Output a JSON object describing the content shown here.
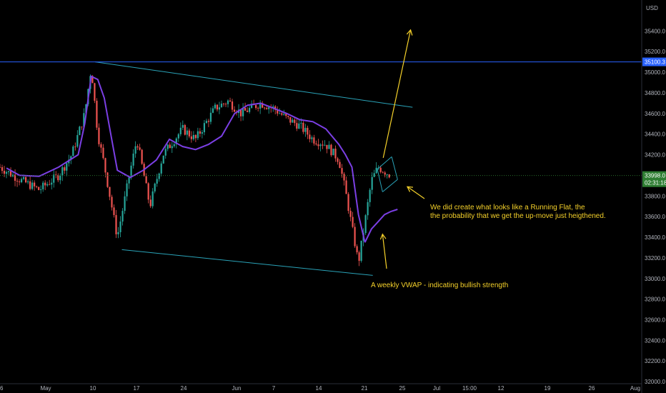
{
  "chart_data": {
    "type": "candlestick",
    "currency": "USD",
    "y_ticks": [
      "35400.0",
      "35200.0",
      "35000.0",
      "34800.0",
      "34600.0",
      "34400.0",
      "34200.0",
      "34000.0",
      "33800.0",
      "33600.0",
      "33400.0",
      "33200.0",
      "33000.0",
      "32800.0",
      "32600.0",
      "32400.0",
      "32200.0",
      "32000.0"
    ],
    "x_ticks": [
      "6",
      "May",
      "10",
      "17",
      "24",
      "Jun",
      "7",
      "14",
      "21",
      "25",
      "Jul",
      "15:00",
      "12",
      "19",
      "26",
      "Aug"
    ],
    "ylim": [
      31980,
      35700
    ],
    "xlim": [
      0,
      100
    ],
    "price_label": "33998.0",
    "countdown": "02:31:18",
    "level_label": "35100.3",
    "level_value": 35100.3,
    "current_price": 33998,
    "annotations": [
      "We did create what looks like a Running Flat, the",
      "the probability that we get the up-move just heigthened.",
      "A weekly VWAP - indicating bullish strength"
    ],
    "anchors": [
      [
        0,
        34080
      ],
      [
        3,
        33960
      ],
      [
        6,
        33860
      ],
      [
        9,
        34000
      ],
      [
        11,
        34200
      ],
      [
        13,
        34600
      ],
      [
        14,
        35050
      ],
      [
        15,
        34400
      ],
      [
        16,
        34100
      ],
      [
        18,
        33400
      ],
      [
        20,
        34050
      ],
      [
        21,
        34350
      ],
      [
        23,
        33700
      ],
      [
        25,
        34200
      ],
      [
        28,
        34450
      ],
      [
        30,
        34350
      ],
      [
        33,
        34650
      ],
      [
        35,
        34720
      ],
      [
        37,
        34600
      ],
      [
        40,
        34700
      ],
      [
        42,
        34650
      ],
      [
        44,
        34550
      ],
      [
        46,
        34480
      ],
      [
        48,
        34350
      ],
      [
        50,
        34300
      ],
      [
        52,
        34150
      ],
      [
        53,
        33850
      ],
      [
        54,
        33500
      ],
      [
        55,
        33150
      ],
      [
        56,
        33550
      ],
      [
        57,
        33950
      ],
      [
        58,
        34080
      ],
      [
        59,
        34040
      ],
      [
        60,
        33998
      ]
    ],
    "vwap_main": [
      [
        1,
        34070
      ],
      [
        3,
        34000
      ],
      [
        6,
        33990
      ],
      [
        9,
        34080
      ],
      [
        12,
        34200
      ],
      [
        13,
        34500
      ],
      [
        14,
        34960
      ],
      [
        15,
        34930
      ],
      [
        16,
        34750
      ],
      [
        17,
        34400
      ],
      [
        18,
        34050
      ],
      [
        20,
        33980
      ],
      [
        22,
        34050
      ],
      [
        24,
        34150
      ],
      [
        26,
        34350
      ],
      [
        28,
        34280
      ],
      [
        30,
        34250
      ],
      [
        32,
        34300
      ],
      [
        34,
        34380
      ],
      [
        36,
        34600
      ],
      [
        38,
        34680
      ],
      [
        40,
        34700
      ],
      [
        42,
        34650
      ],
      [
        44,
        34600
      ],
      [
        46,
        34540
      ],
      [
        48,
        34520
      ],
      [
        50,
        34450
      ],
      [
        52,
        34300
      ],
      [
        53,
        34200
      ],
      [
        54,
        34080
      ],
      [
        55,
        33620
      ],
      [
        56,
        33350
      ]
    ],
    "vwap_weekly": [
      [
        56,
        33350
      ],
      [
        57,
        33480
      ],
      [
        58,
        33550
      ],
      [
        59,
        33620
      ],
      [
        60,
        33650
      ],
      [
        61,
        33670
      ]
    ],
    "lines": {
      "channel_top": [
        [
          14.6,
          35100
        ],
        [
          63.3,
          34660
        ]
      ],
      "channel_bottom": [
        [
          18.7,
          33280
        ],
        [
          57.2,
          33030
        ]
      ],
      "flat_upper": [
        [
          57.9,
          34060
        ],
        [
          60.1,
          34180
        ]
      ],
      "flat_lower": [
        [
          58.7,
          33840
        ],
        [
          61.0,
          33960
        ]
      ],
      "projection": [
        [
          58.8,
          34170
        ],
        [
          63.0,
          35410
        ]
      ]
    },
    "colors": {
      "up": "#26a69a",
      "down": "#ef5350",
      "vwap": "#7b3fe4",
      "channel": "#2aa3b8",
      "level": "#2962ff",
      "note": "#f5d12a",
      "price": "#2e7d32"
    }
  }
}
